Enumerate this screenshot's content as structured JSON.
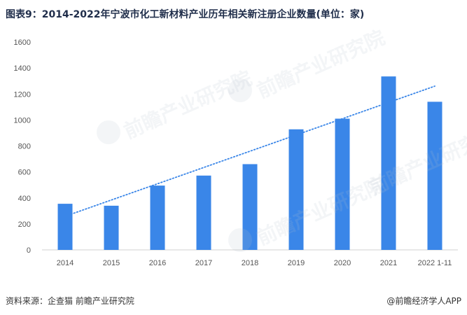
{
  "header": {
    "title": "图表9：2014-2022年宁波市化工新材料产业历年相关新注册企业数量(单位：家)"
  },
  "chart_data": {
    "type": "bar",
    "categories": [
      "2014",
      "2015",
      "2016",
      "2017",
      "2018",
      "2019",
      "2020",
      "2021",
      "2022 1-11"
    ],
    "values": [
      355,
      340,
      495,
      572,
      660,
      928,
      1010,
      1335,
      1140
    ],
    "ylim": [
      0,
      1600
    ],
    "yticks": [
      0,
      200,
      400,
      600,
      800,
      1000,
      1200,
      1400,
      1600
    ],
    "trendline": {
      "type": "linear",
      "style": "dotted"
    },
    "grid": false,
    "bar_color": "#3a86e8",
    "trend_color": "#3a86e8"
  },
  "footer": {
    "source": "资料来源：企查猫 前瞻产业研究院",
    "credit": "@前瞻经济学人APP"
  },
  "watermark": {
    "text": "前瞻产业研究院"
  }
}
